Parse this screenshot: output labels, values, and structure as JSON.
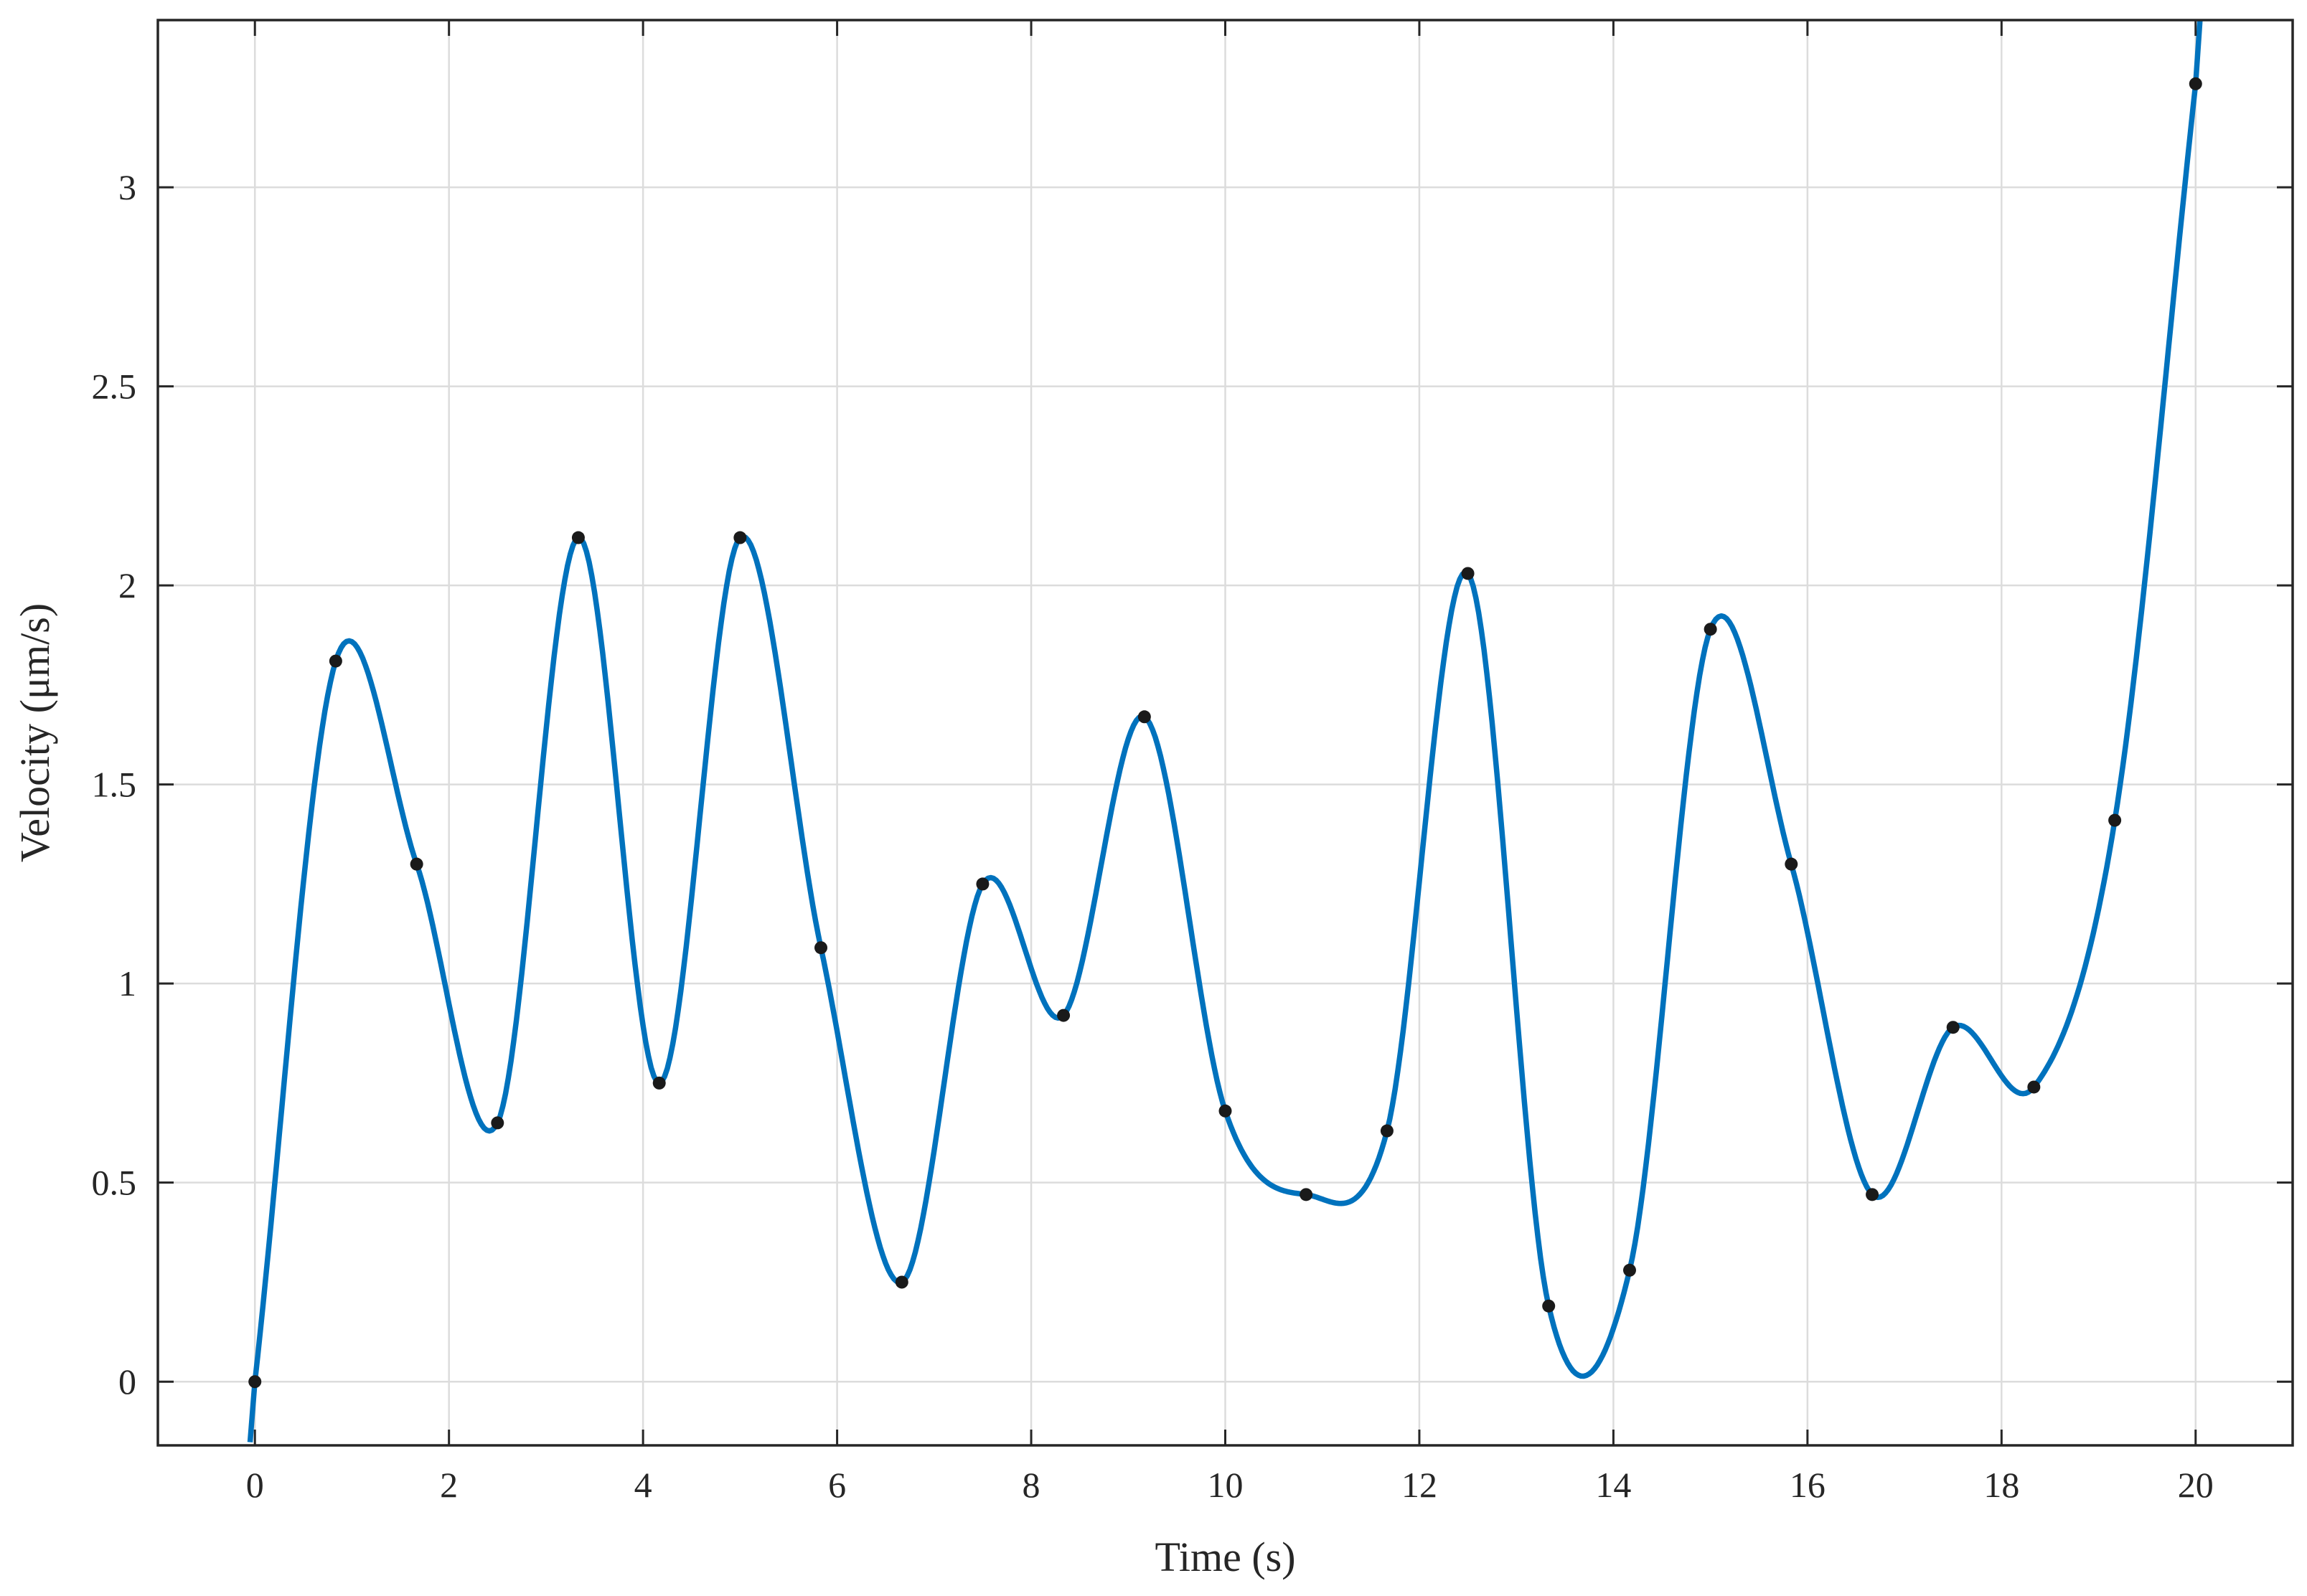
{
  "chart_data": {
    "type": "line",
    "xlabel": "Time (s)",
    "ylabel": "Velocity (μm/s)",
    "xlim": [
      -1,
      21
    ],
    "ylim": [
      -0.16,
      3.42
    ],
    "xticks": [
      "0",
      "2",
      "4",
      "6",
      "8",
      "10",
      "12",
      "14",
      "16",
      "18",
      "20"
    ],
    "yticks": [
      "0",
      "0.5",
      "1",
      "1.5",
      "2",
      "2.5",
      "3"
    ],
    "grid": true,
    "colors": {
      "line": "#0072BD",
      "points": "#1a1a1a",
      "axis": "#262626",
      "grid": "#dcdcdc"
    },
    "series": [
      {
        "style": "markers",
        "x": [
          0,
          0.833,
          1.667,
          2.5,
          3.333,
          4.167,
          5.0,
          5.833,
          6.667,
          7.5,
          8.333,
          9.167,
          10.0,
          10.833,
          11.667,
          12.5,
          13.333,
          14.167,
          15.0,
          15.833,
          16.667,
          17.5,
          18.333,
          19.167,
          20.0
        ],
        "y": [
          0,
          1.81,
          1.3,
          0.65,
          2.12,
          0.75,
          2.12,
          1.09,
          0.25,
          1.25,
          0.92,
          1.67,
          0.68,
          0.47,
          0.63,
          2.03,
          0.19,
          0.28,
          1.89,
          1.3,
          0.47,
          0.89,
          0.74,
          1.41,
          3.26
        ]
      },
      {
        "style": "spline-line",
        "x": [
          0,
          0.833,
          1.667,
          2.5,
          3.333,
          4.167,
          5.0,
          5.833,
          6.667,
          7.5,
          8.333,
          9.167,
          10.0,
          10.833,
          11.667,
          12.5,
          13.333,
          14.167,
          15.0,
          15.833,
          16.667,
          17.5,
          18.333,
          19.167,
          20.0
        ],
        "y": [
          0,
          1.81,
          1.3,
          0.65,
          2.12,
          0.75,
          2.12,
          1.09,
          0.25,
          1.25,
          0.92,
          1.67,
          0.68,
          0.47,
          0.63,
          2.03,
          0.19,
          0.28,
          1.89,
          1.3,
          0.47,
          0.89,
          0.74,
          1.41,
          3.26
        ]
      }
    ]
  }
}
